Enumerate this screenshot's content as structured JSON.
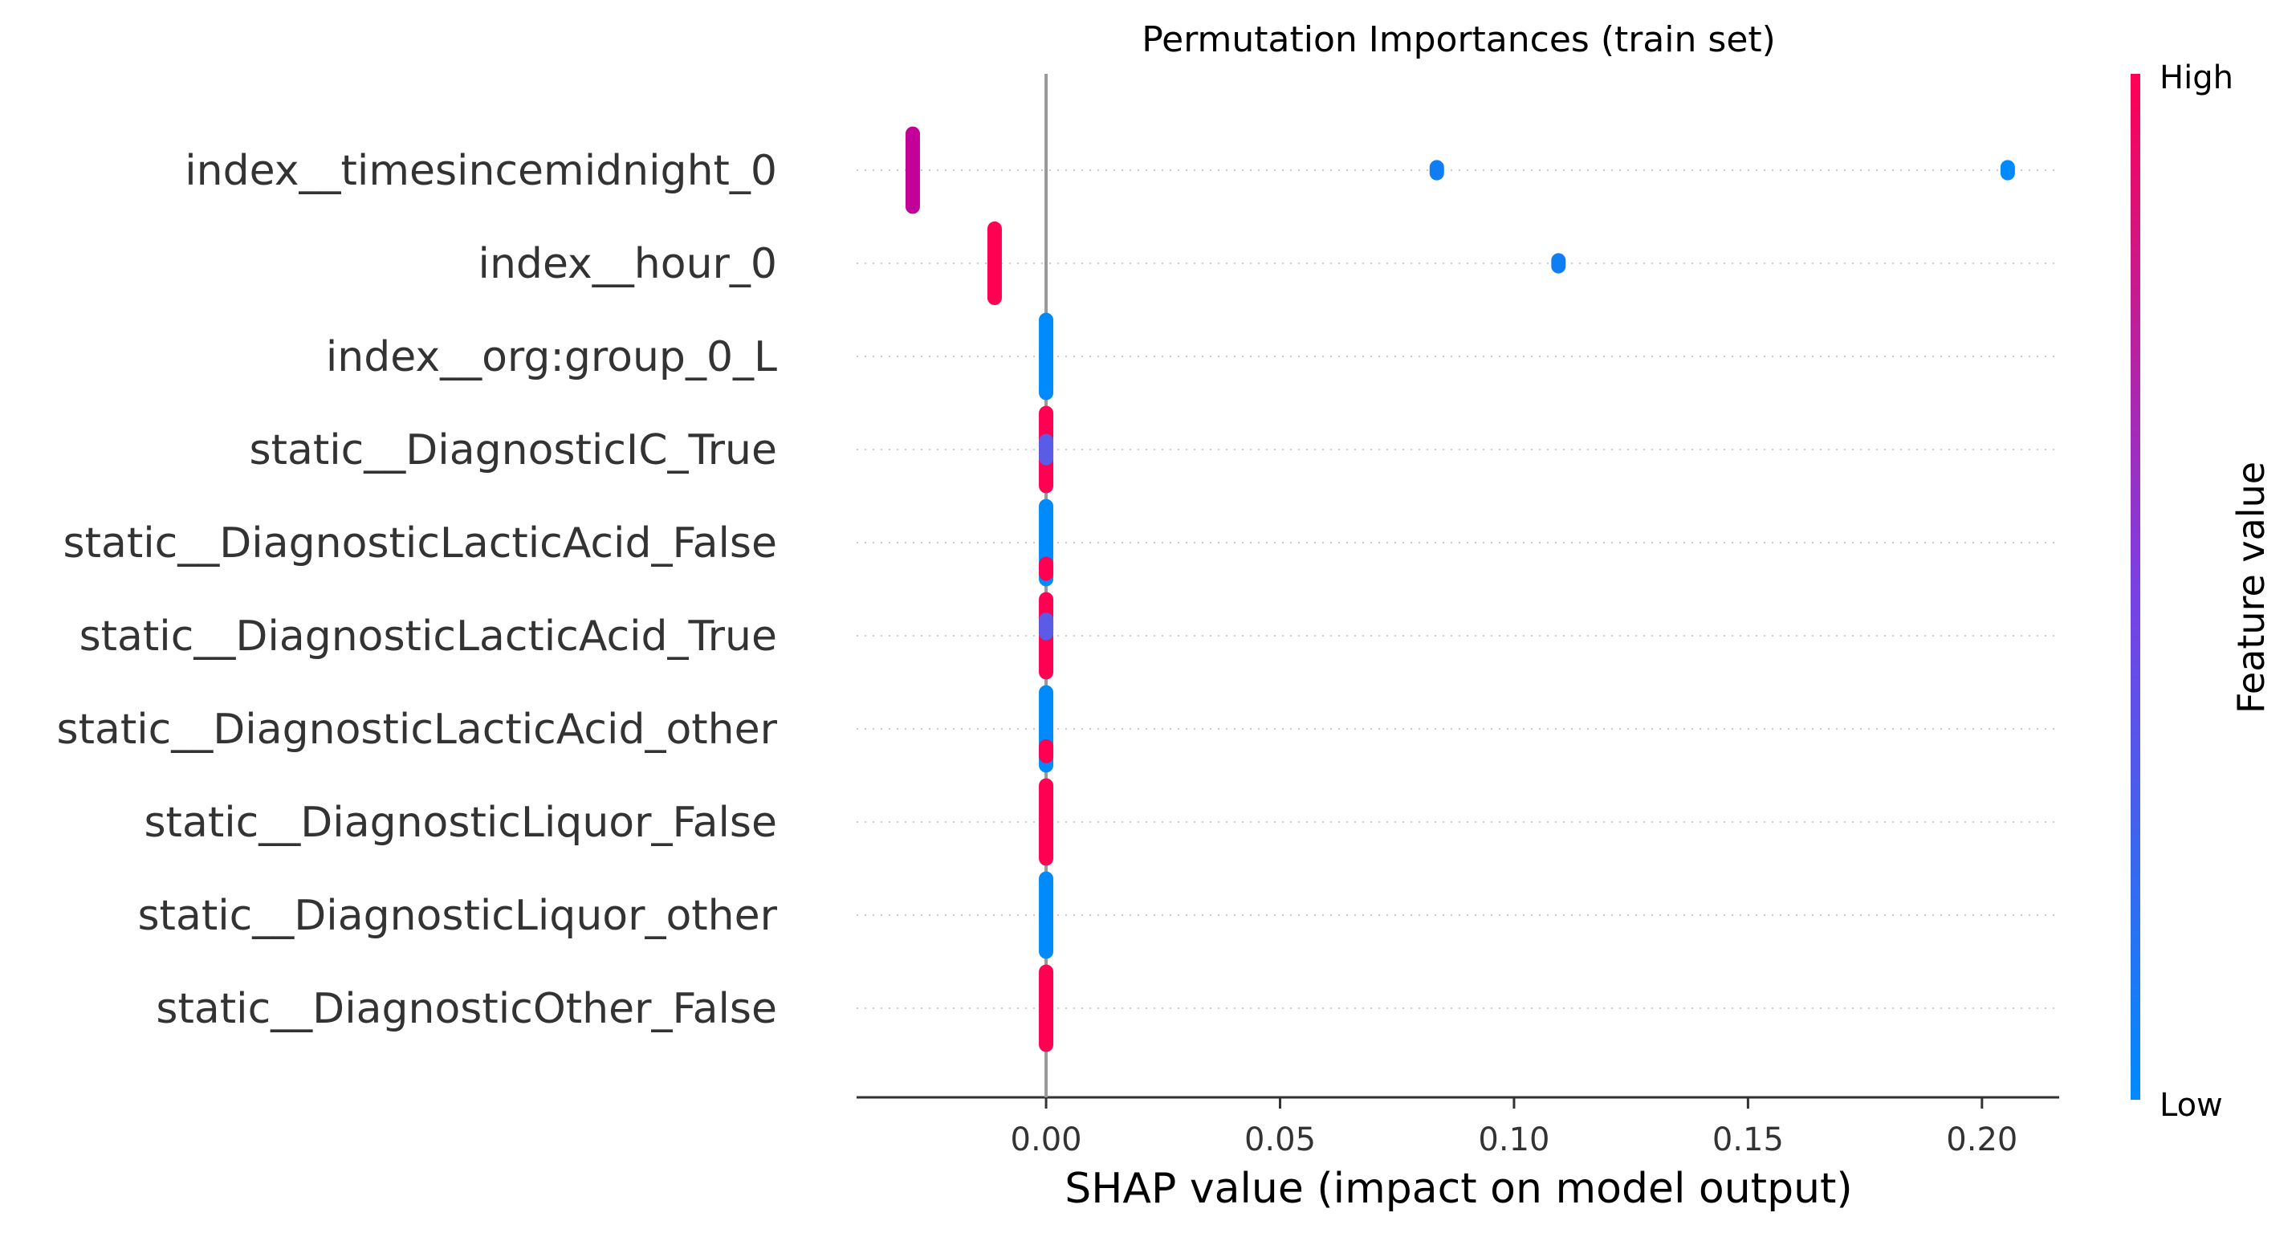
{
  "chart_data": {
    "type": "scatter",
    "subtype": "shap-beeswarm",
    "title": "Permutation Importances (train set)",
    "xlabel": "SHAP value (impact on model output)",
    "xlim": [
      -0.0405,
      0.2165
    ],
    "x_ticks": [
      "0.00",
      "0.05",
      "0.10",
      "0.15",
      "0.20"
    ],
    "x_tick_values": [
      0.0,
      0.05,
      0.1,
      0.15,
      0.2
    ],
    "grid": "dotted horizontal lines per feature",
    "zero_line": true,
    "colorbar": {
      "label": "Feature value",
      "high": "High",
      "low": "Low",
      "colors": [
        "#008afb",
        "#7b3fe4",
        "#ff0052"
      ]
    },
    "features": [
      {
        "name": "index__timesincemidnight_0",
        "points": [
          {
            "x": -0.0285,
            "color": "#c20097",
            "spread": 0.4
          },
          {
            "x": 0.0835,
            "color": "#0f7ef5",
            "spread": 0.04
          },
          {
            "x": 0.2055,
            "color": "#008afb",
            "spread": 0.04
          }
        ]
      },
      {
        "name": "index__hour_0",
        "points": [
          {
            "x": -0.011,
            "color": "#ff0052",
            "spread": 0.38
          },
          {
            "x": 0.1095,
            "color": "#0f7ef5",
            "spread": 0.04
          }
        ]
      },
      {
        "name": "index__org:group_0_L",
        "points": [
          {
            "x": 0.0,
            "color": "#008afb",
            "spread": 0.4
          }
        ]
      },
      {
        "name": "static__DiagnosticIC_True",
        "points": [
          {
            "x": 0.0,
            "color": "#ff0052",
            "spread": 0.4
          },
          {
            "x": 0.0,
            "color": "#5a5ce8",
            "spread": 0.1
          }
        ]
      },
      {
        "name": "static__DiagnosticLacticAcid_False",
        "points": [
          {
            "x": 0.0,
            "color": "#008afb",
            "spread": 0.4
          },
          {
            "x": 0.0,
            "color": "#ff0052",
            "spread": 0.06,
            "offset": 0.28
          }
        ]
      },
      {
        "name": "static__DiagnosticLacticAcid_True",
        "points": [
          {
            "x": 0.0,
            "color": "#ff0052",
            "spread": 0.4
          },
          {
            "x": 0.0,
            "color": "#5a5ce8",
            "spread": 0.08,
            "offset": -0.1
          }
        ]
      },
      {
        "name": "static__DiagnosticLacticAcid_other",
        "points": [
          {
            "x": 0.0,
            "color": "#008afb",
            "spread": 0.4
          },
          {
            "x": 0.0,
            "color": "#ff0052",
            "spread": 0.06,
            "offset": 0.24
          }
        ]
      },
      {
        "name": "static__DiagnosticLiquor_False",
        "points": [
          {
            "x": 0.0,
            "color": "#ff0052",
            "spread": 0.4
          }
        ]
      },
      {
        "name": "static__DiagnosticLiquor_other",
        "points": [
          {
            "x": 0.0,
            "color": "#008afb",
            "spread": 0.4
          }
        ]
      },
      {
        "name": "static__DiagnosticOther_False",
        "points": [
          {
            "x": 0.0,
            "color": "#ff0052",
            "spread": 0.4
          }
        ]
      }
    ]
  }
}
